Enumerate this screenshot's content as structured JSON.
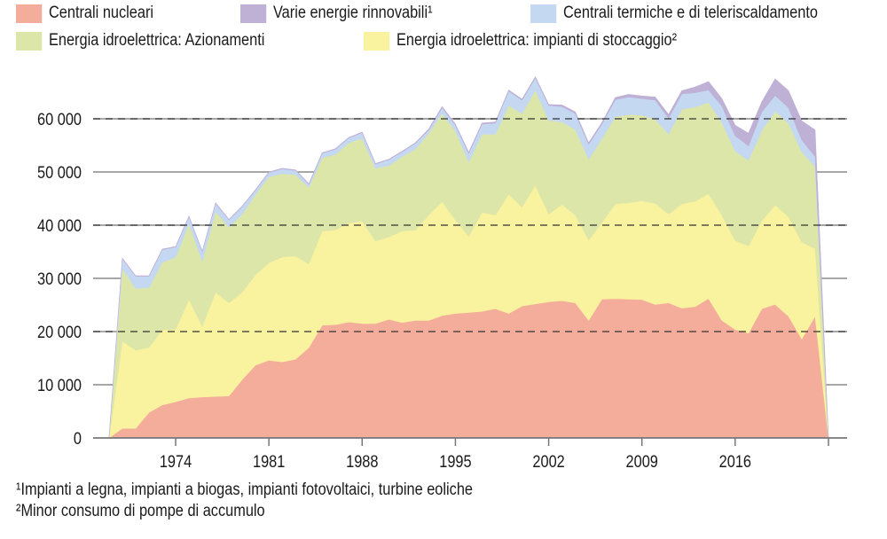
{
  "legend": [
    {
      "label": "Centrali nucleari",
      "color": "#f4ad9b"
    },
    {
      "label": "Varie energie rinnovabili¹",
      "color": "#bfb0d6"
    },
    {
      "label": "Centrali termiche e di teleriscaldamento",
      "color": "#c4d8f2"
    },
    {
      "label": "Energia idroelettrica: Azionamenti",
      "color": "#dde6a9"
    },
    {
      "label": "Energia idroelettrica: impianti di stoccaggio²",
      "color": "#f9f29f"
    }
  ],
  "footnotes": [
    "¹Impianti a legna, impianti a biogas, impianti fotovoltaici, turbine eoliche",
    "²Minor consumo di pompe di accumulo"
  ],
  "chart_data": {
    "type": "area",
    "stacked": true,
    "title": "",
    "xlabel": "",
    "ylabel": "",
    "ylim": [
      0,
      68000
    ],
    "xlim": [
      1969,
      2023
    ],
    "yticks": [
      0,
      10000,
      20000,
      30000,
      40000,
      50000,
      60000
    ],
    "ytick_labels": [
      "0",
      "10 000",
      "20 000",
      "30 000",
      "40 000",
      "50 000",
      "60 000"
    ],
    "xtick_labels": [
      "1974",
      "1981",
      "1988",
      "1995",
      "2002",
      "2009",
      "2016"
    ],
    "xticks": [
      1974,
      1981,
      1988,
      1995,
      2002,
      2009,
      2016,
      2023
    ],
    "grid": true,
    "dashed_gridlines": [
      20000,
      40000,
      60000
    ],
    "legend_placement": "top",
    "x": [
      1969,
      1970,
      1971,
      1972,
      1973,
      1974,
      1975,
      1976,
      1977,
      1978,
      1979,
      1980,
      1981,
      1982,
      1983,
      1984,
      1985,
      1986,
      1987,
      1988,
      1989,
      1990,
      1991,
      1992,
      1993,
      1994,
      1995,
      1996,
      1997,
      1998,
      1999,
      2000,
      2001,
      2002,
      2003,
      2004,
      2005,
      2006,
      2007,
      2008,
      2009,
      2010,
      2011,
      2012,
      2013,
      2014,
      2015,
      2016,
      2017,
      2018,
      2019,
      2020,
      2021,
      2022,
      2023
    ],
    "series": [
      {
        "name": "Centrali nucleari",
        "color": "#f4ad9b",
        "values": [
          0,
          1800,
          1800,
          4800,
          6200,
          6800,
          7500,
          7700,
          7800,
          7900,
          11000,
          13700,
          14600,
          14300,
          14800,
          17000,
          21200,
          21300,
          21800,
          21500,
          21500,
          22300,
          21700,
          22100,
          22100,
          23000,
          23400,
          23600,
          23800,
          24300,
          23400,
          24800,
          25200,
          25600,
          25800,
          25400,
          22100,
          26100,
          26200,
          26100,
          26000,
          25100,
          25400,
          24400,
          24700,
          26200,
          22100,
          20400,
          19700,
          24300,
          25100,
          22900,
          18600,
          22900,
          0
        ]
      },
      {
        "name": "Energia idroelettrica: impianti di stoccaggio²",
        "color": "#f9f29f",
        "values": [
          0,
          16400,
          14700,
          12200,
          14100,
          13600,
          18500,
          13300,
          19600,
          17500,
          16400,
          17000,
          18300,
          19700,
          19400,
          15700,
          17700,
          17800,
          18600,
          19300,
          15500,
          15500,
          17200,
          17000,
          19800,
          21400,
          17600,
          14300,
          18600,
          17600,
          22400,
          18600,
          22300,
          16500,
          18100,
          16500,
          15100,
          14400,
          17800,
          18100,
          18600,
          19000,
          16700,
          19600,
          19800,
          19700,
          19800,
          16700,
          16400,
          16500,
          18700,
          18700,
          18200,
          12700,
          0
        ]
      },
      {
        "name": "Energia idroelettrica: Azionamenti",
        "color": "#dde6a9",
        "values": [
          0,
          13700,
          11600,
          11300,
          12700,
          13600,
          14300,
          12200,
          15200,
          14200,
          14700,
          15100,
          16200,
          15700,
          15300,
          14400,
          13800,
          14200,
          15100,
          15500,
          13700,
          13400,
          14000,
          15200,
          15400,
          16600,
          16700,
          14000,
          14700,
          15200,
          16700,
          17600,
          17900,
          17600,
          15500,
          16100,
          15200,
          15800,
          16400,
          16600,
          16100,
          15800,
          15000,
          17800,
          17700,
          17200,
          17400,
          16800,
          16100,
          17000,
          17600,
          17600,
          17000,
          15400,
          0
        ]
      },
      {
        "name": "Centrali termiche e di teleriscaldamento",
        "color": "#c4d8f2",
        "values": [
          0,
          1800,
          2300,
          2100,
          2400,
          1900,
          1300,
          1800,
          1500,
          1400,
          1400,
          800,
          800,
          900,
          800,
          600,
          800,
          1000,
          900,
          1100,
          800,
          1100,
          900,
          1100,
          600,
          1100,
          1100,
          1600,
          1900,
          2100,
          2700,
          2500,
          2300,
          2800,
          2900,
          3000,
          2800,
          2700,
          3200,
          3300,
          3100,
          3600,
          3000,
          2900,
          2700,
          2300,
          3100,
          2900,
          2700,
          3500,
          3000,
          2900,
          2200,
          1900,
          0
        ]
      },
      {
        "name": "Varie energie rinnovabili¹",
        "color": "#bfb0d6",
        "values": [
          0,
          100,
          100,
          100,
          100,
          100,
          100,
          100,
          100,
          100,
          100,
          100,
          100,
          100,
          100,
          100,
          100,
          100,
          100,
          100,
          100,
          100,
          100,
          100,
          200,
          200,
          200,
          200,
          200,
          200,
          200,
          200,
          200,
          200,
          300,
          300,
          300,
          300,
          400,
          500,
          500,
          600,
          700,
          600,
          1100,
          1600,
          1400,
          2000,
          2400,
          1900,
          3100,
          3200,
          3600,
          5000,
          0
        ]
      }
    ]
  }
}
